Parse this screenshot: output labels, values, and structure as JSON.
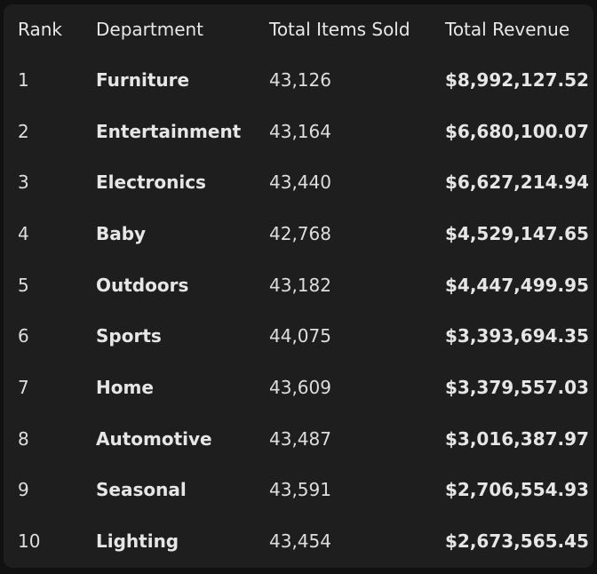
{
  "table": {
    "headers": [
      "Rank",
      "Department",
      "Total Items Sold",
      "Total Revenue"
    ],
    "rows": [
      {
        "rank": "1",
        "department": "Furniture",
        "items_sold": "43,126",
        "revenue": "$8,992,127.52"
      },
      {
        "rank": "2",
        "department": "Entertainment",
        "items_sold": "43,164",
        "revenue": "$6,680,100.07"
      },
      {
        "rank": "3",
        "department": "Electronics",
        "items_sold": "43,440",
        "revenue": "$6,627,214.94"
      },
      {
        "rank": "4",
        "department": "Baby",
        "items_sold": "42,768",
        "revenue": "$4,529,147.65"
      },
      {
        "rank": "5",
        "department": "Outdoors",
        "items_sold": "43,182",
        "revenue": "$4,447,499.95"
      },
      {
        "rank": "6",
        "department": "Sports",
        "items_sold": "44,075",
        "revenue": "$3,393,694.35"
      },
      {
        "rank": "7",
        "department": "Home",
        "items_sold": "43,609",
        "revenue": "$3,379,557.03"
      },
      {
        "rank": "8",
        "department": "Automotive",
        "items_sold": "43,487",
        "revenue": "$3,016,387.97"
      },
      {
        "rank": "9",
        "department": "Seasonal",
        "items_sold": "43,591",
        "revenue": "$2,706,554.93"
      },
      {
        "rank": "10",
        "department": "Lighting",
        "items_sold": "43,454",
        "revenue": "$2,673,565.45"
      }
    ]
  }
}
